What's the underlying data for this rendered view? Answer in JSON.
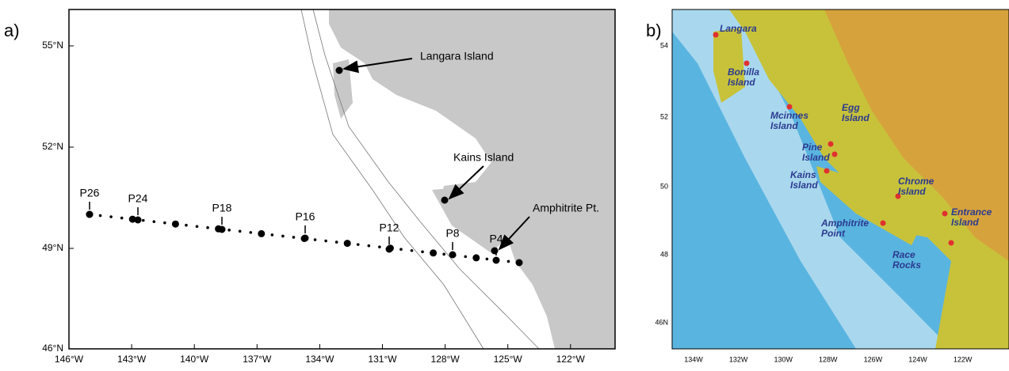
{
  "panel_a": {
    "label": "a)",
    "lat_labels": [
      "55°N",
      "52°N",
      "49°N",
      "46°N"
    ],
    "lon_labels": [
      "146°W",
      "143°W",
      "140°W",
      "137°W",
      "134°W",
      "131°W",
      "128°W",
      "125°W",
      "122°W"
    ],
    "stations": [
      "P26",
      "P24",
      "P18",
      "P16",
      "P12",
      "P8",
      "P4"
    ],
    "annotations": [
      "Langara Island",
      "Kains Island",
      "Amphitrite Pt."
    ]
  },
  "panel_b": {
    "label": "b)",
    "lat_labels": [
      "54",
      "52",
      "50",
      "48",
      "46N"
    ],
    "lon_labels": [
      "134W",
      "132W",
      "130W",
      "128W",
      "126W",
      "124W",
      "122W"
    ],
    "sites": [
      "Langara",
      "Bonilla Island",
      "Mcinnes Island",
      "Egg Island",
      "Pine Island",
      "Kains Island",
      "Chrome Island",
      "Entrance Island",
      "Amphitrite Point",
      "Race Rocks"
    ]
  }
}
